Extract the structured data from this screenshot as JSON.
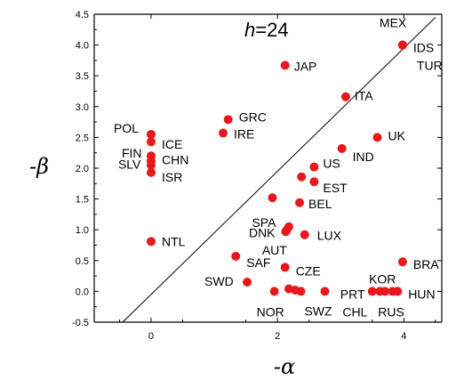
{
  "chart_data": {
    "type": "scatter",
    "title": "",
    "annotation": {
      "italic": "h",
      "rest": "=24"
    },
    "xlabel": "-α",
    "ylabel": "-β",
    "xlim": [
      -0.9,
      4.6
    ],
    "ylim": [
      -0.5,
      4.5
    ],
    "x_ticks": [
      0,
      2,
      4
    ],
    "x_tick_labels": [
      "0",
      "2",
      "4"
    ],
    "y_ticks": [
      -0.5,
      0.0,
      0.5,
      1.0,
      1.5,
      2.0,
      2.5,
      3.0,
      3.5,
      4.0,
      4.5
    ],
    "y_tick_labels": [
      "-0.5",
      "0.0",
      "0.5",
      "1.0",
      "1.5",
      "2.0",
      "2.5",
      "3.0",
      "3.5",
      "4.0",
      "4.5"
    ],
    "grid": false,
    "reference_line": {
      "type": "45-degree",
      "from": [
        -0.45,
        -0.5
      ],
      "to": [
        4.5,
        4.45
      ]
    },
    "marker_color": "#e8171c",
    "points": [
      {
        "label": "MEX",
        "x": 3.98,
        "y": 4.0
      },
      {
        "label": "IDS",
        "x": 3.98,
        "y": 4.0
      },
      {
        "label": "TUR",
        "x": 3.98,
        "y": 4.0
      },
      {
        "label": "JAP",
        "x": 2.12,
        "y": 3.67
      },
      {
        "label": "ITA",
        "x": 3.08,
        "y": 3.16
      },
      {
        "label": "POL",
        "x": 0.0,
        "y": 2.55
      },
      {
        "label": "ICE",
        "x": 0.0,
        "y": 2.43
      },
      {
        "label": "FIN",
        "x": 0.0,
        "y": 2.2
      },
      {
        "label": "CHN",
        "x": 0.0,
        "y": 2.12
      },
      {
        "label": "SLV",
        "x": 0.0,
        "y": 2.05
      },
      {
        "label": "ISR",
        "x": 0.0,
        "y": 1.93
      },
      {
        "label": "GRC",
        "x": 1.22,
        "y": 2.79
      },
      {
        "label": "IRE",
        "x": 1.14,
        "y": 2.57
      },
      {
        "label": "UK",
        "x": 3.58,
        "y": 2.5
      },
      {
        "label": "IND",
        "x": 3.02,
        "y": 2.32
      },
      {
        "label": "US",
        "x": 2.58,
        "y": 2.02
      },
      {
        "label": "EST",
        "x": 2.58,
        "y": 1.78
      },
      {
        "label": "",
        "x": 2.38,
        "y": 1.86
      },
      {
        "label": "SPA",
        "x": 1.92,
        "y": 1.52
      },
      {
        "label": "BEL",
        "x": 2.35,
        "y": 1.44
      },
      {
        "label": "DNK",
        "x": 2.18,
        "y": 1.05
      },
      {
        "label": "",
        "x": 2.13,
        "y": 0.97
      },
      {
        "label": "AUT",
        "x": 2.15,
        "y": 1.0
      },
      {
        "label": "LUX",
        "x": 2.43,
        "y": 0.92
      },
      {
        "label": "NTL",
        "x": 0.0,
        "y": 0.81
      },
      {
        "label": "SAF",
        "x": 1.34,
        "y": 0.57
      },
      {
        "label": "CZE",
        "x": 2.12,
        "y": 0.39
      },
      {
        "label": "SWD",
        "x": 1.52,
        "y": 0.15
      },
      {
        "label": "BRA",
        "x": 3.98,
        "y": 0.48
      },
      {
        "label": "",
        "x": 2.18,
        "y": 0.04
      },
      {
        "label": "NOR",
        "x": 1.95,
        "y": 0.0
      },
      {
        "label": "",
        "x": 2.28,
        "y": 0.02
      },
      {
        "label": "SWZ",
        "x": 2.37,
        "y": 0.0
      },
      {
        "label": "",
        "x": 2.75,
        "y": 0.0
      },
      {
        "label": "PRT",
        "x": 3.5,
        "y": 0.0
      },
      {
        "label": "CHL",
        "x": 3.62,
        "y": 0.0
      },
      {
        "label": "KOR",
        "x": 3.7,
        "y": 0.0
      },
      {
        "label": "",
        "x": 3.82,
        "y": 0.0
      },
      {
        "label": "HUN",
        "x": 3.9,
        "y": 0.0
      },
      {
        "label": "RUS",
        "x": 3.9,
        "y": 0.0
      }
    ]
  }
}
